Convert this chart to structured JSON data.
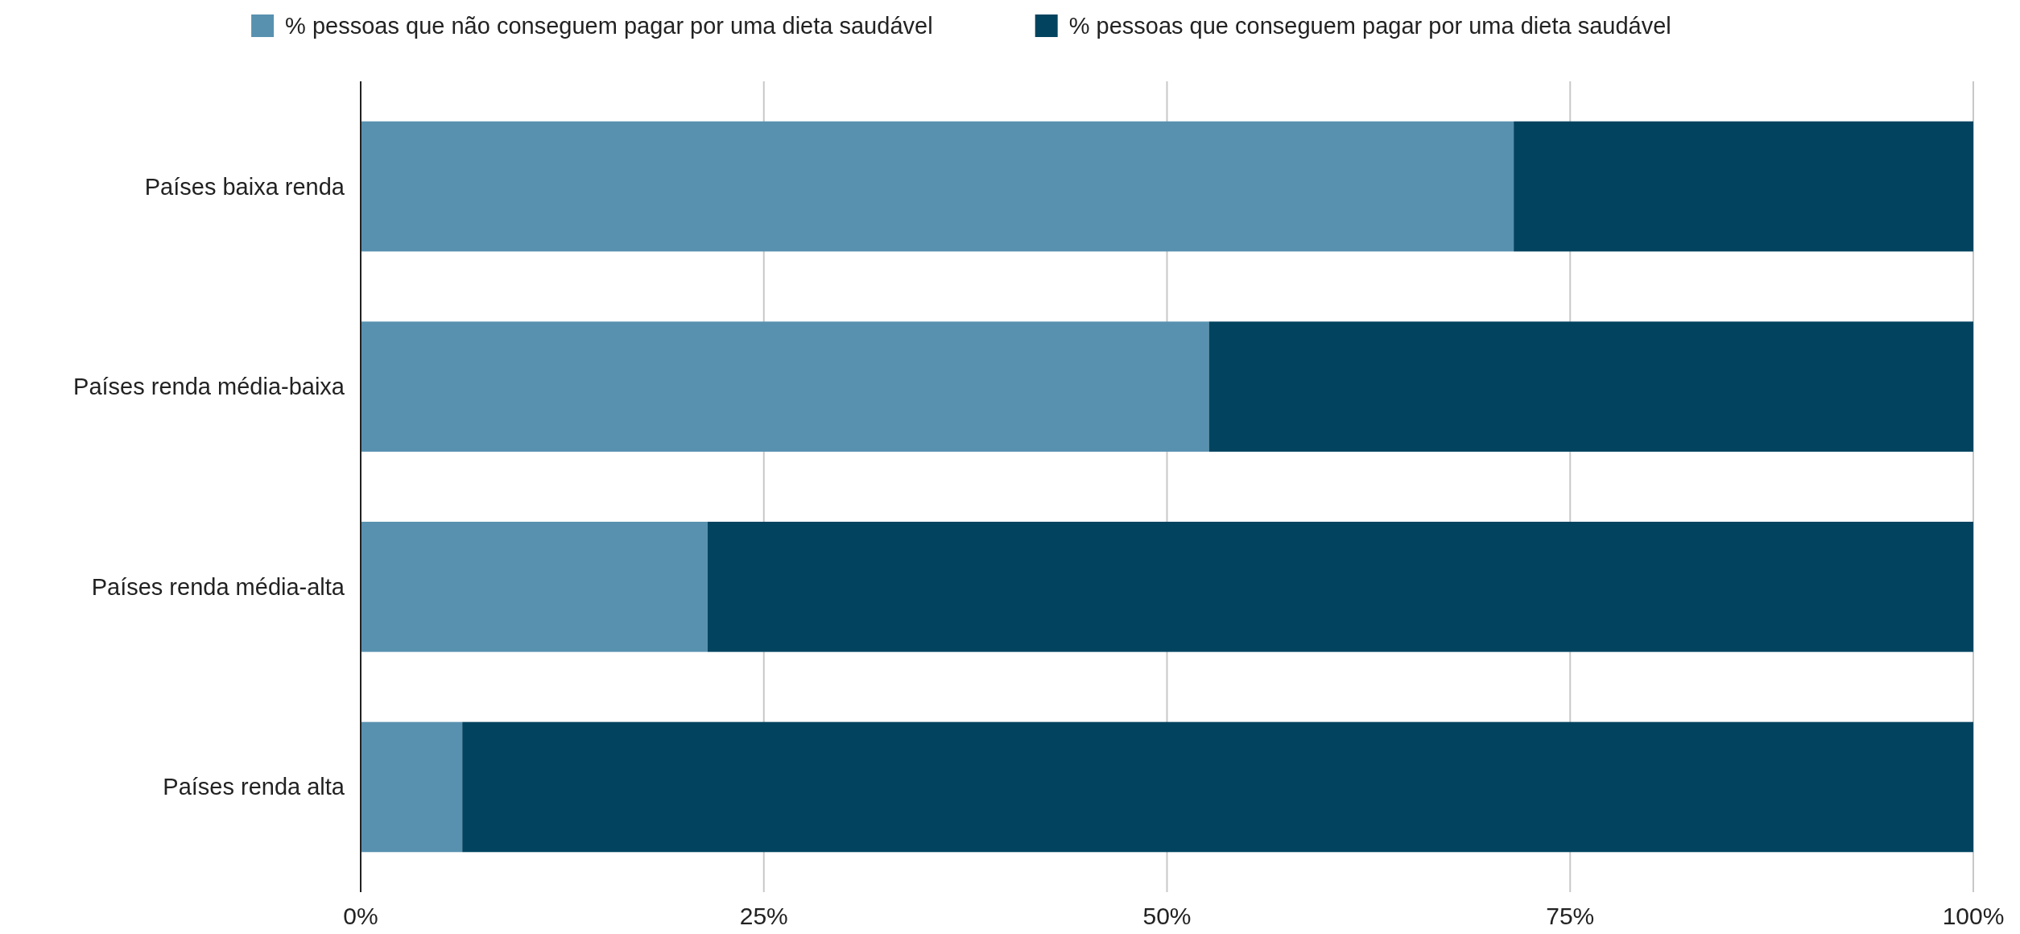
{
  "chart_data": {
    "type": "bar",
    "orientation": "horizontal",
    "stacked": true,
    "categories": [
      "Países baixa renda",
      "Países renda média-baixa",
      "Países renda média-alta",
      "Países renda alta"
    ],
    "series": [
      {
        "name": "% pessoas que não conseguem pagar por uma dieta saudável",
        "color": "#5891b0",
        "values": [
          71.5,
          52.6,
          21.5,
          6.3
        ]
      },
      {
        "name": "% pessoas que conseguem pagar por uma dieta saudável",
        "color": "#02445f",
        "values": [
          28.5,
          47.4,
          78.5,
          93.7
        ]
      }
    ],
    "xlim": [
      0,
      100
    ],
    "xticks": [
      {
        "value": 0,
        "label": "0%"
      },
      {
        "value": 25,
        "label": "25%"
      },
      {
        "value": 50,
        "label": "50%"
      },
      {
        "value": 75,
        "label": "75%"
      },
      {
        "value": 100,
        "label": "100%"
      }
    ],
    "grid": "x",
    "legend": "top"
  }
}
